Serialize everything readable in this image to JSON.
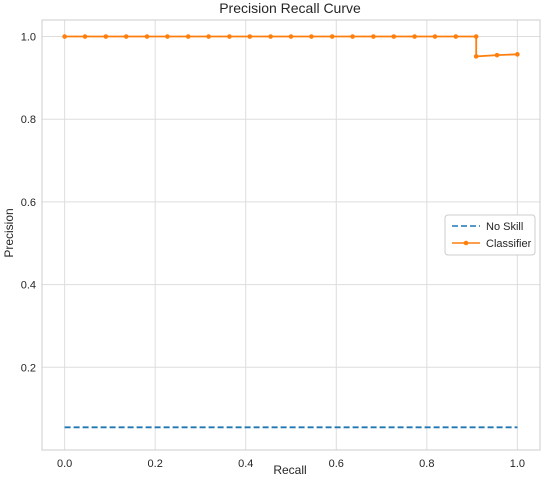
{
  "chart_data": {
    "type": "line",
    "title": "Precision Recall Curve",
    "xlabel": "Recall",
    "ylabel": "Precision",
    "xlim": [
      -0.05,
      1.05
    ],
    "ylim": [
      0.0,
      1.04
    ],
    "xticks": [
      "0.0",
      "0.2",
      "0.4",
      "0.6",
      "0.8",
      "1.0"
    ],
    "yticks": [
      "0.2",
      "0.4",
      "0.6",
      "0.8",
      "1.0"
    ],
    "grid": true,
    "legend_position": "center-right",
    "series": [
      {
        "name": "No Skill",
        "style": "dashed",
        "color": "#1f77b4",
        "x": [
          0.0,
          1.0
        ],
        "y": [
          0.055,
          0.055
        ]
      },
      {
        "name": "Classifier",
        "style": "solid-markers",
        "color": "#ff7f0e",
        "x": [
          0.0,
          0.045,
          0.091,
          0.136,
          0.182,
          0.227,
          0.273,
          0.318,
          0.364,
          0.409,
          0.455,
          0.5,
          0.545,
          0.591,
          0.636,
          0.682,
          0.727,
          0.773,
          0.818,
          0.864,
          0.909,
          0.909,
          0.955,
          1.0
        ],
        "y": [
          1.0,
          1.0,
          1.0,
          1.0,
          1.0,
          1.0,
          1.0,
          1.0,
          1.0,
          1.0,
          1.0,
          1.0,
          1.0,
          1.0,
          1.0,
          1.0,
          1.0,
          1.0,
          1.0,
          1.0,
          1.0,
          0.952,
          0.955,
          0.957
        ]
      }
    ]
  }
}
